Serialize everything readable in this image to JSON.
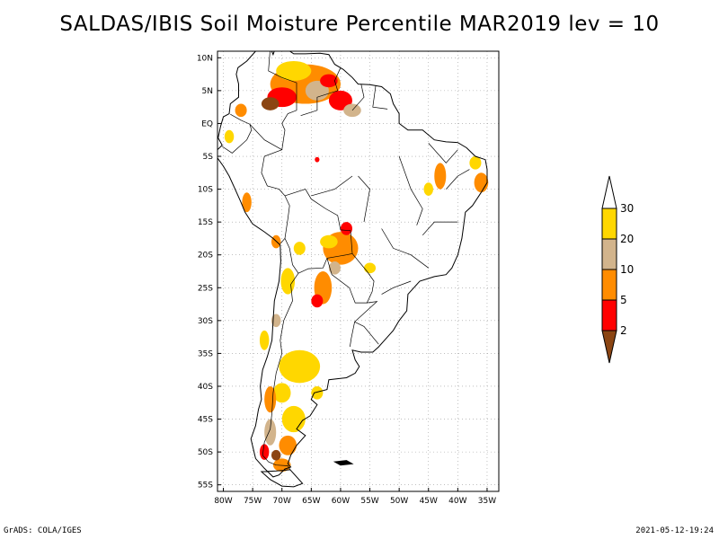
{
  "title": "SALDAS/IBIS Soil Moisture Percentile MAR2019 lev = 10",
  "footer": {
    "left": "GrADS: COLA/IGES",
    "right": "2021-05-12-19:24"
  },
  "map": {
    "region": "South America",
    "lon_range": [
      -81,
      -33
    ],
    "lat_range": [
      -56,
      11
    ],
    "lat_ticks": [
      {
        "value": 10,
        "label": "10N"
      },
      {
        "value": 5,
        "label": "5N"
      },
      {
        "value": 0,
        "label": "EQ"
      },
      {
        "value": -5,
        "label": "5S"
      },
      {
        "value": -10,
        "label": "10S"
      },
      {
        "value": -15,
        "label": "15S"
      },
      {
        "value": -20,
        "label": "20S"
      },
      {
        "value": -25,
        "label": "25S"
      },
      {
        "value": -30,
        "label": "30S"
      },
      {
        "value": -35,
        "label": "35S"
      },
      {
        "value": -40,
        "label": "40S"
      },
      {
        "value": -45,
        "label": "45S"
      },
      {
        "value": -50,
        "label": "50S"
      },
      {
        "value": -55,
        "label": "55S"
      }
    ],
    "lon_ticks": [
      {
        "value": -80,
        "label": "80W"
      },
      {
        "value": -75,
        "label": "75W"
      },
      {
        "value": -70,
        "label": "70W"
      },
      {
        "value": -65,
        "label": "65W"
      },
      {
        "value": -60,
        "label": "60W"
      },
      {
        "value": -55,
        "label": "55W"
      },
      {
        "value": -50,
        "label": "50W"
      },
      {
        "value": -45,
        "label": "45W"
      },
      {
        "value": -40,
        "label": "40W"
      },
      {
        "value": -35,
        "label": "35W"
      }
    ],
    "gridlines": true
  },
  "legend": {
    "classes": [
      {
        "label": "2",
        "color": "#8b4513"
      },
      {
        "label": "5",
        "color": "#ff0000"
      },
      {
        "label": "10",
        "color": "#ff8c00"
      },
      {
        "label": "20",
        "color": "#d2b48c"
      },
      {
        "label": "30",
        "color": "#ffd700"
      },
      {
        "label": "",
        "color": "#ffffff"
      }
    ],
    "labels": [
      "2",
      "5",
      "10",
      "20",
      "30"
    ]
  },
  "colors": {
    "below_2": "#8b4513",
    "p2_5": "#ff0000",
    "p5_10": "#ff8c00",
    "p10_20": "#d2b48c",
    "p20_30": "#ffd700"
  },
  "dry_regions": [
    {
      "lon": -66,
      "lat": 6,
      "rx": 6,
      "ry": 3,
      "class": "p5_10"
    },
    {
      "lon": -70,
      "lat": 4,
      "rx": 2.5,
      "ry": 1.5,
      "class": "p2_5"
    },
    {
      "lon": -64,
      "lat": 5,
      "rx": 2,
      "ry": 1.5,
      "class": "p10_20"
    },
    {
      "lon": -60,
      "lat": 3.5,
      "rx": 2,
      "ry": 1.5,
      "class": "p2_5"
    },
    {
      "lon": -72,
      "lat": 3,
      "rx": 1.5,
      "ry": 1,
      "class": "below_2"
    },
    {
      "lon": -68,
      "lat": 8,
      "rx": 3,
      "ry": 1.5,
      "class": "p20_30"
    },
    {
      "lon": -62,
      "lat": 6.5,
      "rx": 1.5,
      "ry": 1,
      "class": "p2_5"
    },
    {
      "lon": -58,
      "lat": 2,
      "rx": 1.5,
      "ry": 1,
      "class": "p10_20"
    },
    {
      "lon": -64,
      "lat": -5.5,
      "rx": 0.4,
      "ry": 0.4,
      "class": "p2_5"
    },
    {
      "lon": -36,
      "lat": -9,
      "rx": 1.2,
      "ry": 1.5,
      "class": "p5_10"
    },
    {
      "lon": -37,
      "lat": -6,
      "rx": 1,
      "ry": 1,
      "class": "p20_30"
    },
    {
      "lon": -43,
      "lat": -8,
      "rx": 1,
      "ry": 2,
      "class": "p5_10"
    },
    {
      "lon": -45,
      "lat": -10,
      "rx": 0.8,
      "ry": 1,
      "class": "p20_30"
    },
    {
      "lon": -60,
      "lat": -19,
      "rx": 3,
      "ry": 2.5,
      "class": "p5_10"
    },
    {
      "lon": -62,
      "lat": -18,
      "rx": 1.5,
      "ry": 1,
      "class": "p20_30"
    },
    {
      "lon": -59,
      "lat": -16,
      "rx": 1,
      "ry": 1,
      "class": "p2_5"
    },
    {
      "lon": -63,
      "lat": -25,
      "rx": 1.5,
      "ry": 2.5,
      "class": "p5_10"
    },
    {
      "lon": -64,
      "lat": -27,
      "rx": 1,
      "ry": 1,
      "class": "p2_5"
    },
    {
      "lon": -61,
      "lat": -22,
      "rx": 1,
      "ry": 1,
      "class": "p10_20"
    },
    {
      "lon": -55,
      "lat": -22,
      "rx": 1,
      "ry": 0.8,
      "class": "p20_30"
    },
    {
      "lon": -67,
      "lat": -19,
      "rx": 1,
      "ry": 1,
      "class": "p20_30"
    },
    {
      "lon": -71,
      "lat": -18,
      "rx": 0.8,
      "ry": 1,
      "class": "p5_10"
    },
    {
      "lon": -69,
      "lat": -24,
      "rx": 1.2,
      "ry": 2,
      "class": "p20_30"
    },
    {
      "lon": -67,
      "lat": -37,
      "rx": 3.5,
      "ry": 2.5,
      "class": "p20_30"
    },
    {
      "lon": -70,
      "lat": -41,
      "rx": 1.5,
      "ry": 1.5,
      "class": "p20_30"
    },
    {
      "lon": -72,
      "lat": -42,
      "rx": 1,
      "ry": 2,
      "class": "p5_10"
    },
    {
      "lon": -68,
      "lat": -45,
      "rx": 2,
      "ry": 2,
      "class": "p20_30"
    },
    {
      "lon": -72,
      "lat": -47,
      "rx": 1,
      "ry": 2,
      "class": "p10_20"
    },
    {
      "lon": -69,
      "lat": -49,
      "rx": 1.5,
      "ry": 1.5,
      "class": "p5_10"
    },
    {
      "lon": -70,
      "lat": -52,
      "rx": 1.5,
      "ry": 1,
      "class": "p5_10"
    },
    {
      "lon": -73,
      "lat": -50,
      "rx": 0.8,
      "ry": 1.2,
      "class": "p2_5"
    },
    {
      "lon": -71,
      "lat": -50.5,
      "rx": 0.8,
      "ry": 0.8,
      "class": "below_2"
    },
    {
      "lon": -64,
      "lat": -41,
      "rx": 1,
      "ry": 1,
      "class": "p20_30"
    },
    {
      "lon": -73,
      "lat": -33,
      "rx": 0.8,
      "ry": 1.5,
      "class": "p20_30"
    },
    {
      "lon": -71,
      "lat": -30,
      "rx": 0.8,
      "ry": 1,
      "class": "p10_20"
    },
    {
      "lon": -79,
      "lat": -2,
      "rx": 0.8,
      "ry": 1,
      "class": "p20_30"
    },
    {
      "lon": -77,
      "lat": 2,
      "rx": 1,
      "ry": 1,
      "class": "p5_10"
    },
    {
      "lon": -76,
      "lat": -12,
      "rx": 0.8,
      "ry": 1.5,
      "class": "p5_10"
    }
  ]
}
